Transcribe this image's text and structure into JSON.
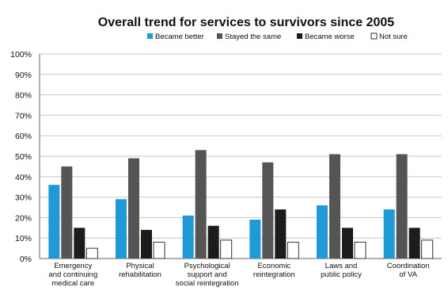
{
  "chart_data": {
    "type": "bar",
    "title": "Overall trend for services to survivors since 2005",
    "categories": [
      [
        "Emergency",
        "and continuing",
        "medical care"
      ],
      [
        "Physical",
        "rehabilitation"
      ],
      [
        "Psychological",
        "support and",
        "social reintegration"
      ],
      [
        "Economic",
        "reintegration"
      ],
      [
        "Laws and",
        "public policy"
      ],
      [
        "Coordination",
        "of VA"
      ]
    ],
    "series": [
      {
        "name": "Became better",
        "color": "#1f9ad6",
        "values": [
          36,
          29,
          21,
          19,
          26,
          24
        ]
      },
      {
        "name": "Stayed the same",
        "color": "#555555",
        "values": [
          45,
          49,
          53,
          47,
          51,
          51
        ]
      },
      {
        "name": "Became worse",
        "color": "#1c1c1c",
        "values": [
          15,
          14,
          16,
          24,
          15,
          15
        ]
      },
      {
        "name": "Not sure",
        "color": "#ffffff",
        "values": [
          5,
          8,
          9,
          8,
          8,
          9
        ]
      }
    ],
    "ylim": [
      0,
      100
    ],
    "yticks": [
      "0%",
      "10%",
      "20%",
      "30%",
      "40%",
      "50%",
      "60%",
      "70%",
      "80%",
      "90%",
      "100%"
    ],
    "xlabel": "",
    "ylabel": "",
    "grid": true,
    "legend": "top"
  }
}
